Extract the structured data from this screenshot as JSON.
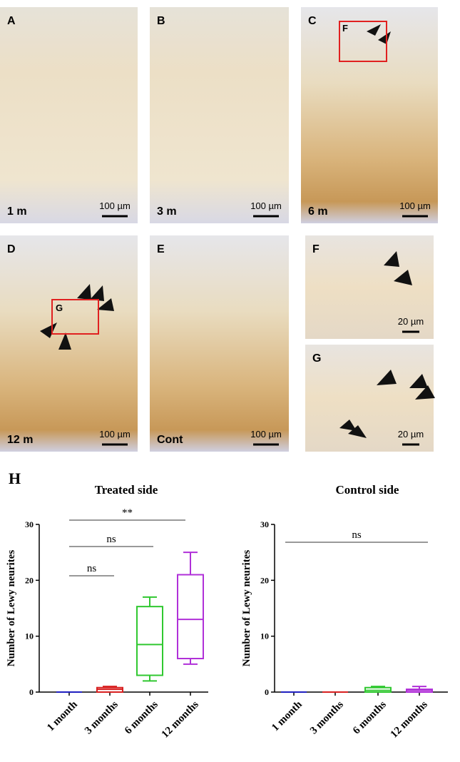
{
  "figure_label": "H",
  "panels": [
    {
      "letter": "A",
      "age": "1 m",
      "scale": "100 µm"
    },
    {
      "letter": "B",
      "age": "3 m",
      "scale": "100 µm"
    },
    {
      "letter": "C",
      "age": "6 m",
      "scale": "100 µm",
      "inset": "F"
    },
    {
      "letter": "D",
      "age": "12 m",
      "scale": "100 µm",
      "inset": "G"
    },
    {
      "letter": "E",
      "age": "Cont",
      "scale": "100 µm"
    },
    {
      "letter": "F",
      "scale": "20 µm"
    },
    {
      "letter": "G",
      "scale": "20 µm"
    }
  ],
  "chart_data": [
    {
      "type": "box",
      "title": "Treated side",
      "y_label": "Number of Lewy neurites",
      "categories": [
        "1 month",
        "3 months",
        "6 months",
        "12 months"
      ],
      "colors": [
        "#2020c0",
        "#d82020",
        "#30c830",
        "#b030d8"
      ],
      "boxes": [
        {
          "min": 0,
          "q1": 0,
          "median": 0,
          "q3": 0,
          "max": 0
        },
        {
          "min": 0,
          "q1": 0,
          "median": 0.5,
          "q3": 0.8,
          "max": 1
        },
        {
          "min": 2,
          "q1": 3,
          "median": 8.5,
          "q3": 15.3,
          "max": 17
        },
        {
          "min": 5,
          "q1": 6,
          "median": 13,
          "q3": 21,
          "max": 25
        }
      ],
      "ylim": [
        0,
        30
      ],
      "yticks": [
        0,
        10,
        20,
        30
      ],
      "annotations": [
        "**",
        "ns",
        "ns"
      ]
    },
    {
      "type": "box",
      "title": "Control side",
      "y_label": "Number of Lewy neurites",
      "categories": [
        "1 month",
        "3 months",
        "6 months",
        "12 months"
      ],
      "colors": [
        "#2020c0",
        "#d82020",
        "#30c830",
        "#b030d8"
      ],
      "boxes": [
        {
          "min": 0,
          "q1": 0,
          "median": 0,
          "q3": 0,
          "max": 0
        },
        {
          "min": 0,
          "q1": 0,
          "median": 0,
          "q3": 0,
          "max": 0
        },
        {
          "min": 0,
          "q1": 0,
          "median": 0.3,
          "q3": 0.8,
          "max": 1
        },
        {
          "min": 0,
          "q1": 0,
          "median": 0.3,
          "q3": 0.5,
          "max": 1
        }
      ],
      "ylim": [
        0,
        30
      ],
      "yticks": [
        0,
        10,
        20,
        30
      ],
      "annotations": [
        "ns"
      ]
    }
  ]
}
